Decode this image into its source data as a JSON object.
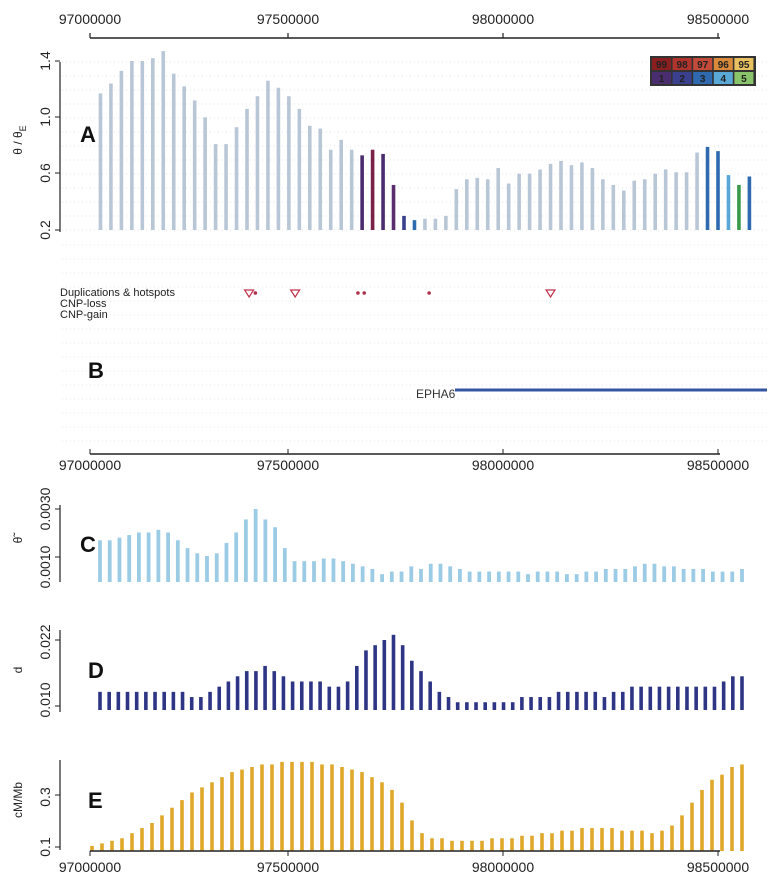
{
  "chart_data": [
    {
      "panel": "A",
      "type": "bar",
      "ylabel": "θ / θ_E",
      "xlim": [
        97000000,
        98600000
      ],
      "ylim": [
        0.2,
        1.45
      ],
      "yticks": [
        "0.2",
        "0.6",
        "1.0",
        "1.4"
      ],
      "xticks": [
        "97000000",
        "97500000",
        "98000000",
        "98500000"
      ],
      "grid": true,
      "legend": {
        "placement": "top-right",
        "top_row": [
          "99",
          "98",
          "97",
          "96",
          "95"
        ],
        "bottom_row": [
          "1",
          "2",
          "3",
          "4",
          "5"
        ],
        "top_colors": [
          "#8b1e1e",
          "#b0332c",
          "#c44a3a",
          "#d98a3a",
          "#e8c060"
        ],
        "bottom_colors": [
          "#4a2d6e",
          "#3a3f8e",
          "#2f6ab0",
          "#5aa8d6",
          "#8ac46a"
        ]
      },
      "default_color": "#b9c6d6",
      "x": [
        97025000,
        97050000,
        97075000,
        97100000,
        97125000,
        97150000,
        97175000,
        97200000,
        97225000,
        97250000,
        97275000,
        97300000,
        97325000,
        97350000,
        97375000,
        97400000,
        97425000,
        97450000,
        97475000,
        97500000,
        97525000,
        97550000,
        97575000,
        97600000,
        97625000,
        97650000,
        97675000,
        97700000,
        97725000,
        97750000,
        97775000,
        97800000,
        97825000,
        97850000,
        97875000,
        97900000,
        97925000,
        97950000,
        97975000,
        98000000,
        98025000,
        98050000,
        98075000,
        98100000,
        98125000,
        98150000,
        98175000,
        98200000,
        98225000,
        98250000,
        98275000,
        98300000,
        98325000,
        98350000,
        98375000,
        98400000,
        98425000,
        98450000,
        98475000,
        98500000,
        98525000,
        98550000,
        98575000
      ],
      "values": [
        1.17,
        1.24,
        1.33,
        1.4,
        1.4,
        1.42,
        1.47,
        1.31,
        1.22,
        1.12,
        1.0,
        0.81,
        0.81,
        0.93,
        1.06,
        1.15,
        1.26,
        1.21,
        1.15,
        1.06,
        0.94,
        0.92,
        0.77,
        0.84,
        0.77,
        0.73,
        0.77,
        0.74,
        0.52,
        0.3,
        0.27,
        0.28,
        0.28,
        0.3,
        0.49,
        0.56,
        0.57,
        0.56,
        0.64,
        0.53,
        0.6,
        0.6,
        0.63,
        0.67,
        0.69,
        0.66,
        0.68,
        0.64,
        0.56,
        0.52,
        0.48,
        0.55,
        0.56,
        0.6,
        0.63,
        0.61,
        0.61,
        0.75,
        0.79,
        0.76,
        0.59,
        0.52,
        0.58
      ],
      "highlight": [
        {
          "x": 97650000,
          "color": "#4a2d6e"
        },
        {
          "x": 97675000,
          "color": "#7a2246"
        },
        {
          "x": 97700000,
          "color": "#4a2d6e"
        },
        {
          "x": 97725000,
          "color": "#5a2d6e"
        },
        {
          "x": 97750000,
          "color": "#3a3f8e"
        },
        {
          "x": 97775000,
          "color": "#2f6ab0"
        },
        {
          "x": 98475000,
          "color": "#2f6ab0"
        },
        {
          "x": 98500000,
          "color": "#2f6ab0"
        },
        {
          "x": 98525000,
          "color": "#5aa8d6"
        },
        {
          "x": 98550000,
          "color": "#3a9a4a"
        },
        {
          "x": 98575000,
          "color": "#2f6ab0"
        }
      ]
    },
    {
      "panel": "B",
      "type": "tracks",
      "tracks": [
        "Duplications & hotspots",
        "CNP-loss",
        "CNP-gain"
      ],
      "duplications_triangles": [
        97380000,
        97490000,
        98100000
      ],
      "duplications_dots": [
        97395000,
        97640000,
        97655000,
        97810000
      ],
      "gene": {
        "name": "EPHA6",
        "start": 97900000,
        "end": 98600000
      },
      "xticks": [
        "97000000",
        "97500000",
        "98000000",
        "98500000"
      ]
    },
    {
      "panel": "C",
      "type": "bar",
      "ylabel": "θ̃",
      "yticks": [
        "0.0010",
        "0.0030"
      ],
      "ylim": [
        0.0002,
        0.0032
      ],
      "color": "#9ccbe6",
      "values": [
        0.0018,
        0.0018,
        0.0019,
        0.002,
        0.0021,
        0.0021,
        0.0022,
        0.0021,
        0.0018,
        0.0015,
        0.0013,
        0.0012,
        0.0013,
        0.0017,
        0.0021,
        0.0026,
        0.003,
        0.0026,
        0.0023,
        0.0015,
        0.001,
        0.001,
        0.001,
        0.0011,
        0.0011,
        0.001,
        0.0009,
        0.0008,
        0.0007,
        0.0005,
        0.0006,
        0.0006,
        0.0008,
        0.0007,
        0.0009,
        0.0009,
        0.0008,
        0.0007,
        0.0006,
        0.0006,
        0.0006,
        0.0006,
        0.0006,
        0.0006,
        0.0005,
        0.0006,
        0.0006,
        0.0006,
        0.0005,
        0.0005,
        0.0006,
        0.0006,
        0.0007,
        0.0007,
        0.0007,
        0.0008,
        0.0009,
        0.0009,
        0.0008,
        0.0008,
        0.0007,
        0.0007,
        0.0007,
        0.0006,
        0.0006,
        0.0006,
        0.0007
      ]
    },
    {
      "panel": "D",
      "type": "bar",
      "ylabel": "d",
      "yticks": [
        "0.010",
        "0.022"
      ],
      "ylim": [
        0.007,
        0.024
      ],
      "color": "#2e3585",
      "values": [
        0.012,
        0.012,
        0.012,
        0.012,
        0.012,
        0.012,
        0.012,
        0.012,
        0.012,
        0.012,
        0.011,
        0.011,
        0.012,
        0.013,
        0.014,
        0.015,
        0.016,
        0.016,
        0.017,
        0.016,
        0.015,
        0.014,
        0.014,
        0.014,
        0.014,
        0.013,
        0.013,
        0.014,
        0.017,
        0.02,
        0.021,
        0.022,
        0.023,
        0.021,
        0.018,
        0.016,
        0.014,
        0.012,
        0.011,
        0.01,
        0.01,
        0.01,
        0.01,
        0.01,
        0.01,
        0.01,
        0.011,
        0.011,
        0.011,
        0.011,
        0.012,
        0.012,
        0.012,
        0.012,
        0.012,
        0.011,
        0.012,
        0.012,
        0.013,
        0.013,
        0.013,
        0.013,
        0.013,
        0.013,
        0.013,
        0.013,
        0.013,
        0.013,
        0.014,
        0.015,
        0.015
      ]
    },
    {
      "panel": "E",
      "type": "bar",
      "ylabel": "cM/Mb",
      "yticks": [
        "0.1",
        "0.3"
      ],
      "ylim": [
        0.1,
        0.45
      ],
      "color": "#e0a82a",
      "values": [
        0.1,
        0.11,
        0.12,
        0.13,
        0.15,
        0.17,
        0.19,
        0.22,
        0.25,
        0.28,
        0.31,
        0.33,
        0.35,
        0.37,
        0.39,
        0.4,
        0.41,
        0.42,
        0.42,
        0.43,
        0.43,
        0.43,
        0.43,
        0.42,
        0.42,
        0.41,
        0.4,
        0.39,
        0.37,
        0.35,
        0.32,
        0.27,
        0.2,
        0.15,
        0.13,
        0.13,
        0.12,
        0.12,
        0.12,
        0.12,
        0.13,
        0.13,
        0.13,
        0.14,
        0.14,
        0.15,
        0.15,
        0.16,
        0.16,
        0.17,
        0.17,
        0.17,
        0.17,
        0.16,
        0.16,
        0.16,
        0.15,
        0.16,
        0.18,
        0.22,
        0.27,
        0.32,
        0.36,
        0.38,
        0.41,
        0.42
      ],
      "xticks": [
        "97000000",
        "97500000",
        "98000000",
        "98500000"
      ]
    }
  ],
  "labels": {
    "panel_a": "A",
    "panel_b": "B",
    "panel_c": "C",
    "panel_d": "D",
    "panel_e": "E",
    "track_dup": "Duplications & hotspots",
    "track_loss": "CNP-loss",
    "track_gain": "CNP-gain",
    "gene": "EPHA6",
    "ylabel_a": "θ / θ",
    "ylabel_a_sub": "E",
    "ylabel_c": "θ̃",
    "ylabel_d": "d",
    "ylabel_e": "cM/Mb",
    "xtick_0": "97000000",
    "xtick_1": "97500000",
    "xtick_2": "98000000",
    "xtick_3": "98500000",
    "a_ytick_0": "0.2",
    "a_ytick_1": "0.6",
    "a_ytick_2": "1.0",
    "a_ytick_3": "1.4",
    "c_ytick_0": "0.0010",
    "c_ytick_1": "0.0030",
    "d_ytick_0": "0.010",
    "d_ytick_1": "0.022",
    "e_ytick_0": "0.1",
    "e_ytick_1": "0.3"
  }
}
